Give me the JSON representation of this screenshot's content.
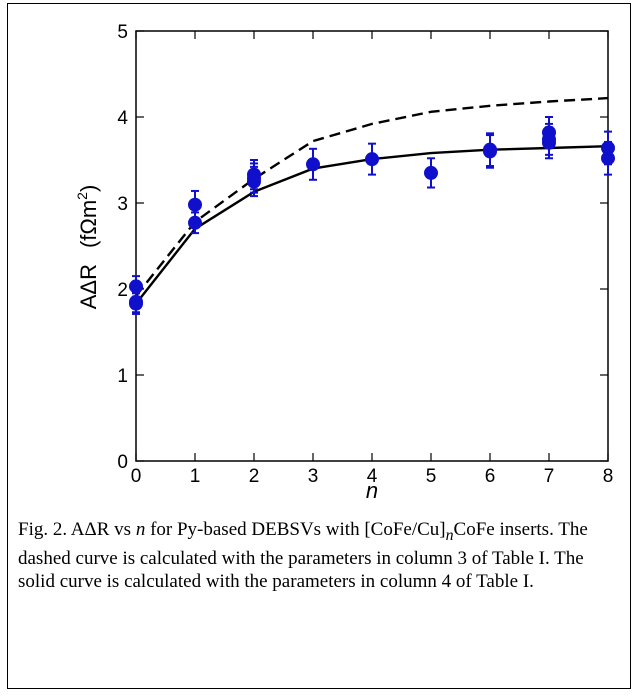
{
  "chart_data": {
    "type": "scatter",
    "xlabel": "n",
    "ylabel_main": "AΔR",
    "ylabel_units_pre": "(fΩm",
    "ylabel_units_sup": "2",
    "ylabel_units_post": ")",
    "xlim": [
      0,
      8
    ],
    "ylim": [
      0,
      5
    ],
    "xticks": [
      "0",
      "1",
      "2",
      "3",
      "4",
      "5",
      "6",
      "7",
      "8"
    ],
    "yticks": [
      "0",
      "1",
      "2",
      "3",
      "4",
      "5"
    ],
    "grid": false,
    "colors": {
      "points": "#1010cc",
      "curves": "#000000"
    },
    "series": [
      {
        "type": "scatter",
        "x": [
          0,
          0,
          0,
          1,
          1,
          2,
          2,
          2,
          3,
          4,
          5,
          6,
          6,
          7,
          7,
          7,
          8,
          8
        ],
        "y": [
          2.03,
          1.85,
          1.83,
          2.98,
          2.77,
          3.33,
          3.29,
          3.25,
          3.45,
          3.51,
          3.35,
          3.62,
          3.6,
          3.82,
          3.74,
          3.7,
          3.64,
          3.52
        ],
        "err": [
          0.12,
          0.12,
          0.12,
          0.16,
          0.12,
          0.17,
          0.17,
          0.17,
          0.18,
          0.18,
          0.17,
          0.19,
          0.19,
          0.18,
          0.18,
          0.18,
          0.19,
          0.19
        ]
      },
      {
        "type": "line",
        "style": "dashed",
        "x": [
          0,
          1,
          2,
          3,
          4,
          5,
          6,
          7,
          8
        ],
        "y": [
          1.92,
          2.78,
          3.28,
          3.72,
          3.92,
          4.06,
          4.13,
          4.18,
          4.22
        ]
      },
      {
        "type": "line",
        "style": "solid",
        "x": [
          0,
          1,
          2,
          3,
          4,
          5,
          6,
          7,
          8
        ],
        "y": [
          1.83,
          2.7,
          3.13,
          3.4,
          3.51,
          3.58,
          3.62,
          3.64,
          3.66
        ]
      }
    ]
  },
  "caption": {
    "p1": "Fig. 2.  AΔR vs ",
    "n1": "n",
    "p2": " for Py-based DEBSVs with [CoFe/Cu]",
    "sub": "n",
    "p3": "CoFe inserts.  The dashed curve is calculated with the parameters in column 3 of Table I.  The solid curve is calculated with the parameters in column 4 of Table I."
  }
}
